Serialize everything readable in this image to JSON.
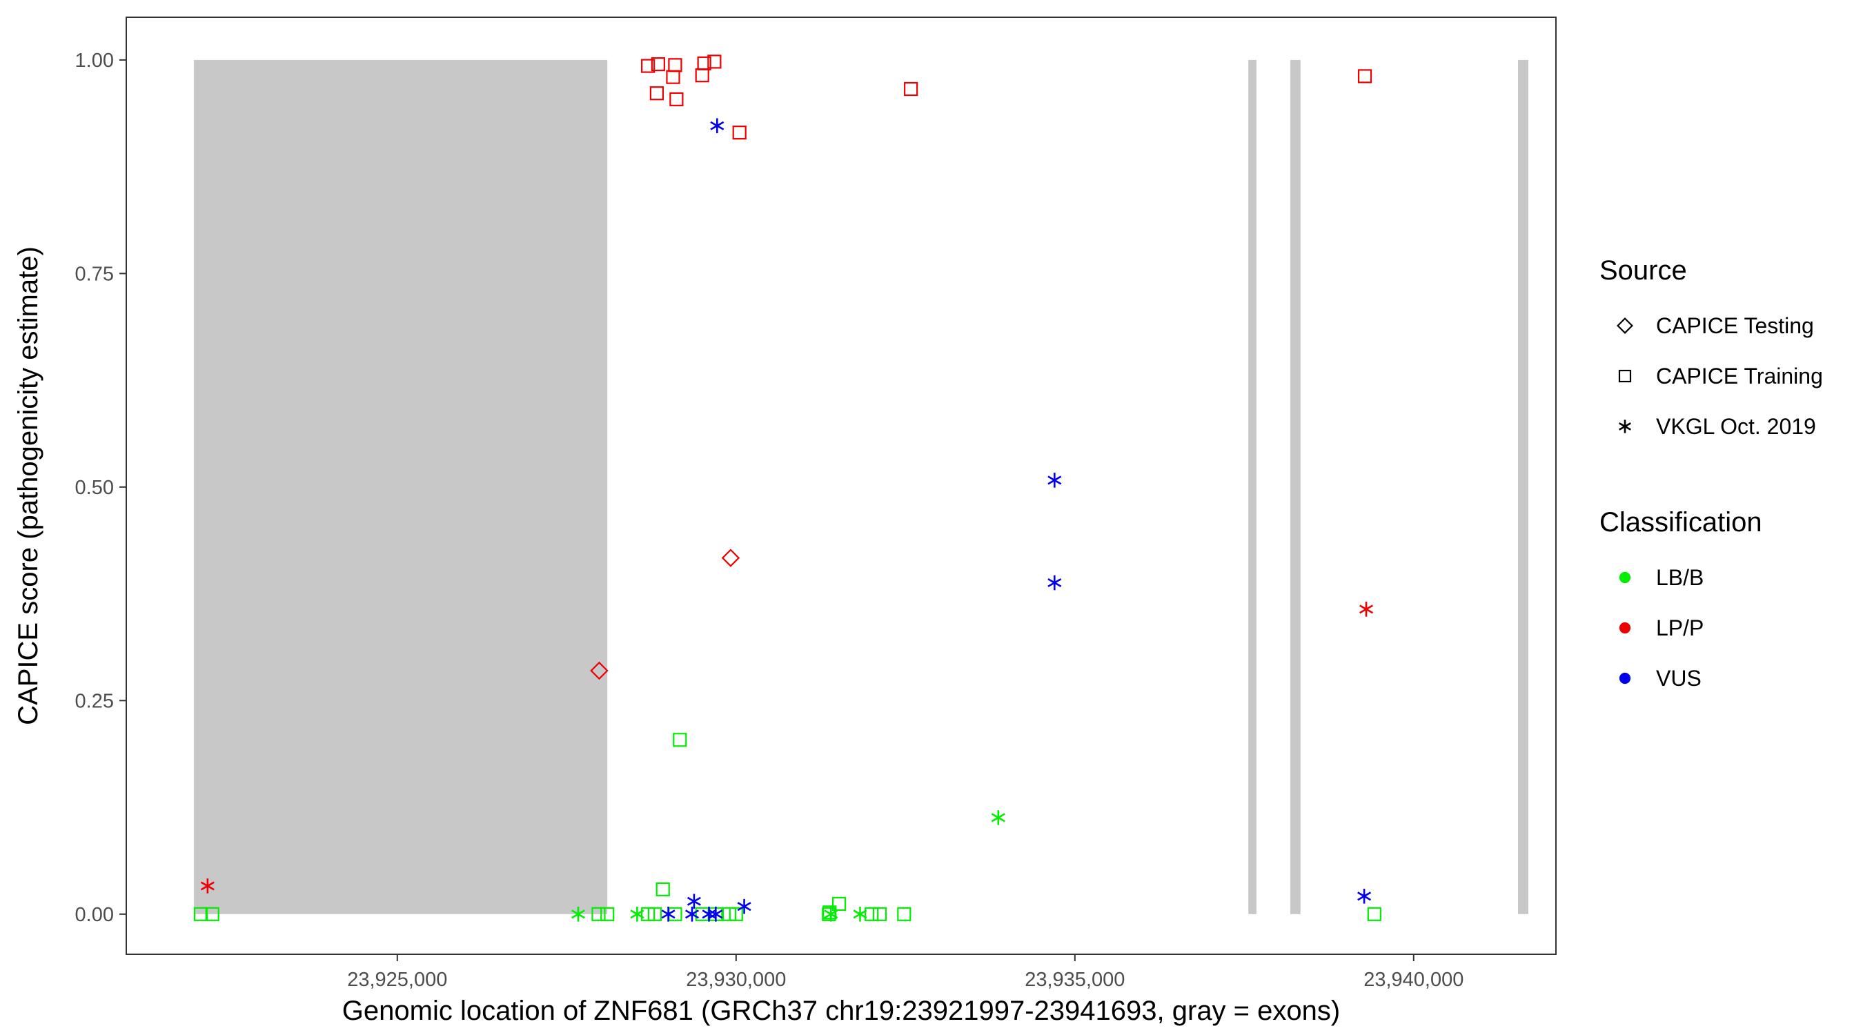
{
  "chart_data": {
    "type": "scatter",
    "title": "",
    "xlabel": "Genomic location of ZNF681 (GRCh37 chr19:23921997-23941693, gray = exons)",
    "ylabel": "CAPICE score (pathogenicity estimate)",
    "xlim": [
      23921000,
      23942100
    ],
    "ylim": [
      -0.047,
      1.05
    ],
    "x_ticks": [
      23925000,
      23930000,
      23935000,
      23940000
    ],
    "x_tick_labels": [
      "23,925,000",
      "23,930,000",
      "23,935,000",
      "23,940,000"
    ],
    "y_ticks": [
      0,
      0.25,
      0.5,
      0.75,
      1.0
    ],
    "y_tick_labels": [
      "0.00",
      "0.25",
      "0.50",
      "0.75",
      "1.00"
    ],
    "grid": false,
    "legend_placement": "right",
    "exons": [
      {
        "start": 23921997,
        "end": 23928100
      },
      {
        "start": 23937560,
        "end": 23937680
      },
      {
        "start": 23938180,
        "end": 23938330
      },
      {
        "start": 23941540,
        "end": 23941693
      }
    ],
    "exon_fill": "#c8c8c8",
    "colors": {
      "LB/B": "#00ee00",
      "LP/P": "#ee0000",
      "VUS": "#0000ee"
    },
    "legends": [
      {
        "title": "Source",
        "entries": [
          {
            "label": "CAPICE Testing",
            "shape": "diamond"
          },
          {
            "label": "CAPICE Training",
            "shape": "square"
          },
          {
            "label": "VKGL Oct. 2019",
            "shape": "asterisk"
          }
        ]
      },
      {
        "title": "Classification",
        "entries": [
          {
            "label": "LB/B",
            "shape": "dot",
            "color": "#00ee00"
          },
          {
            "label": "LP/P",
            "shape": "dot",
            "color": "#ee0000"
          },
          {
            "label": "VUS",
            "shape": "dot",
            "color": "#0000ee"
          }
        ]
      }
    ],
    "series": [
      {
        "source": "CAPICE Testing",
        "shape": "diamond",
        "points": [
          {
            "x": 23927980,
            "y": 0.285,
            "class": "LP/P"
          },
          {
            "x": 23929920,
            "y": 0.417,
            "class": "LP/P"
          }
        ]
      },
      {
        "source": "CAPICE Training",
        "shape": "square",
        "points": [
          {
            "x": 23928700,
            "y": 0.993,
            "class": "LP/P"
          },
          {
            "x": 23928850,
            "y": 0.995,
            "class": "LP/P"
          },
          {
            "x": 23929100,
            "y": 0.994,
            "class": "LP/P"
          },
          {
            "x": 23929530,
            "y": 0.996,
            "class": "LP/P"
          },
          {
            "x": 23929680,
            "y": 0.998,
            "class": "LP/P"
          },
          {
            "x": 23929070,
            "y": 0.98,
            "class": "LP/P"
          },
          {
            "x": 23929500,
            "y": 0.982,
            "class": "LP/P"
          },
          {
            "x": 23928830,
            "y": 0.961,
            "class": "LP/P"
          },
          {
            "x": 23929120,
            "y": 0.954,
            "class": "LP/P"
          },
          {
            "x": 23930050,
            "y": 0.915,
            "class": "LP/P"
          },
          {
            "x": 23932580,
            "y": 0.966,
            "class": "LP/P"
          },
          {
            "x": 23939280,
            "y": 0.981,
            "class": "LP/P"
          },
          {
            "x": 23929170,
            "y": 0.204,
            "class": "LB/B"
          },
          {
            "x": 23928920,
            "y": 0.029,
            "class": "LB/B"
          },
          {
            "x": 23931520,
            "y": 0.012,
            "class": "LB/B"
          },
          {
            "x": 23931380,
            "y": 0.002,
            "class": "LB/B"
          },
          {
            "x": 23922100,
            "y": 0.0,
            "class": "LB/B"
          },
          {
            "x": 23922270,
            "y": 0.0,
            "class": "LB/B"
          },
          {
            "x": 23927970,
            "y": 0.0,
            "class": "LB/B"
          },
          {
            "x": 23928100,
            "y": 0.0,
            "class": "LB/B"
          },
          {
            "x": 23928700,
            "y": 0.0,
            "class": "LB/B"
          },
          {
            "x": 23928800,
            "y": 0.0,
            "class": "LB/B"
          },
          {
            "x": 23929100,
            "y": 0.0,
            "class": "LB/B"
          },
          {
            "x": 23929500,
            "y": 0.0,
            "class": "LB/B"
          },
          {
            "x": 23929700,
            "y": 0.0,
            "class": "LB/B"
          },
          {
            "x": 23929900,
            "y": 0.0,
            "class": "LB/B"
          },
          {
            "x": 23930000,
            "y": 0.0,
            "class": "LB/B"
          },
          {
            "x": 23931370,
            "y": 0.0,
            "class": "LB/B"
          },
          {
            "x": 23932000,
            "y": 0.0,
            "class": "LB/B"
          },
          {
            "x": 23932120,
            "y": 0.0,
            "class": "LB/B"
          },
          {
            "x": 23932480,
            "y": 0.0,
            "class": "LB/B"
          },
          {
            "x": 23939420,
            "y": 0.0,
            "class": "LB/B"
          }
        ]
      },
      {
        "source": "VKGL Oct. 2019",
        "shape": "asterisk",
        "points": [
          {
            "x": 23929720,
            "y": 0.923,
            "class": "VUS"
          },
          {
            "x": 23934700,
            "y": 0.508,
            "class": "VUS"
          },
          {
            "x": 23934700,
            "y": 0.388,
            "class": "VUS"
          },
          {
            "x": 23939270,
            "y": 0.021,
            "class": "VUS"
          },
          {
            "x": 23929380,
            "y": 0.015,
            "class": "VUS"
          },
          {
            "x": 23930120,
            "y": 0.009,
            "class": "VUS"
          },
          {
            "x": 23929000,
            "y": 0.0,
            "class": "VUS"
          },
          {
            "x": 23929350,
            "y": 0.0,
            "class": "VUS"
          },
          {
            "x": 23929600,
            "y": 0.0,
            "class": "VUS"
          },
          {
            "x": 23929700,
            "y": 0.0,
            "class": "VUS"
          },
          {
            "x": 23922200,
            "y": 0.033,
            "class": "LP/P"
          },
          {
            "x": 23939300,
            "y": 0.357,
            "class": "LP/P"
          },
          {
            "x": 23933870,
            "y": 0.113,
            "class": "LB/B"
          },
          {
            "x": 23927670,
            "y": 0.0,
            "class": "LB/B"
          },
          {
            "x": 23928540,
            "y": 0.0,
            "class": "LB/B"
          },
          {
            "x": 23931400,
            "y": 0.0,
            "class": "LB/B"
          },
          {
            "x": 23931830,
            "y": 0.0,
            "class": "LB/B"
          }
        ]
      }
    ]
  }
}
